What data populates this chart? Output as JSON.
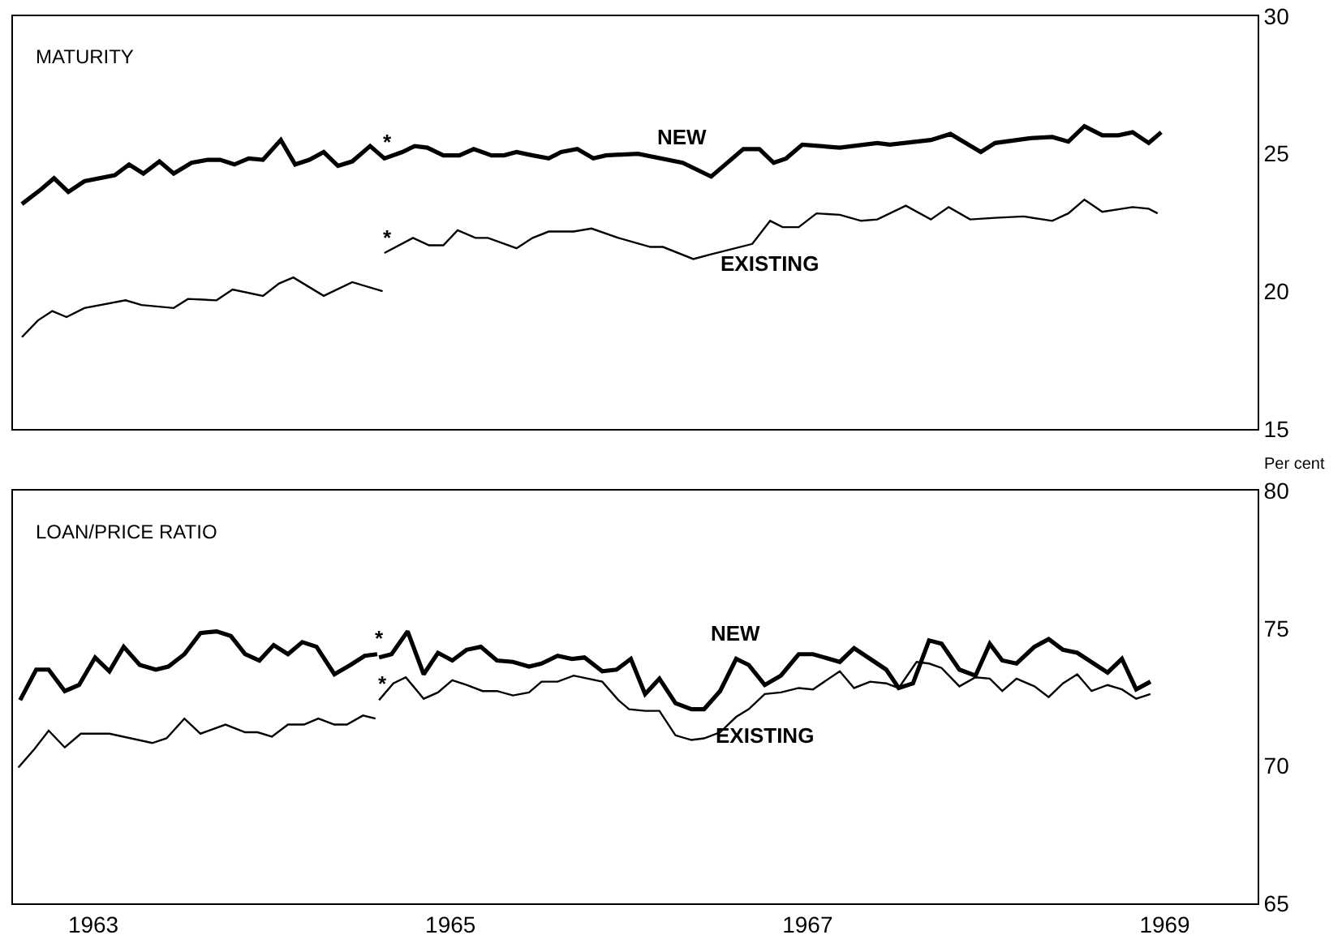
{
  "chart_data": [
    {
      "type": "line",
      "title": "MATURITY",
      "xlim": [
        1962.55,
        1969.52
      ],
      "ylim": [
        15,
        30
      ],
      "yticks": [
        15,
        20,
        25,
        30
      ],
      "xticks": [
        1963,
        1965,
        1967,
        1969
      ],
      "tick_labels": "y",
      "marker": "none",
      "series": [
        {
          "name": "NEW",
          "color": "#000000",
          "line_style": "solid",
          "x": [
            1962.6,
            1962.71,
            1962.78,
            1962.86,
            1962.95,
            1963.12,
            1963.2,
            1963.28,
            1963.37,
            1963.45,
            1963.55,
            1963.64,
            1963.71,
            1963.79,
            1963.87,
            1963.95,
            1964.05,
            1964.13,
            1964.21,
            1964.29,
            1964.37,
            1964.45,
            1964.55,
            1964.63,
            1964.73,
            1964.8,
            1964.87,
            1964.96,
            1965.05,
            1965.13,
            1965.23,
            1965.3,
            1965.37,
            1965.46,
            1965.55,
            1965.62,
            1965.71,
            1965.8,
            1965.87,
            1966.05,
            1966.3,
            1966.46,
            1966.64,
            1966.73,
            1966.81,
            1966.88,
            1966.97,
            1967.18,
            1967.39,
            1967.46,
            1967.69,
            1967.8,
            1967.97,
            1968.05,
            1968.24,
            1968.37,
            1968.46,
            1968.55,
            1968.65,
            1968.74,
            1968.82,
            1968.91,
            1968.98
          ],
          "values": [
            23.17,
            23.72,
            24.11,
            23.61,
            24.0,
            24.22,
            24.61,
            24.28,
            24.72,
            24.28,
            24.67,
            24.78,
            24.78,
            24.61,
            24.83,
            24.78,
            25.5,
            24.61,
            24.78,
            25.06,
            24.56,
            24.72,
            25.28,
            24.83,
            25.06,
            25.28,
            25.22,
            24.94,
            24.94,
            25.17,
            24.94,
            24.94,
            25.06,
            24.94,
            24.83,
            25.06,
            25.17,
            24.83,
            24.94,
            25.0,
            24.67,
            24.17,
            25.17,
            25.17,
            24.67,
            24.83,
            25.33,
            25.22,
            25.39,
            25.33,
            25.5,
            25.72,
            25.06,
            25.39,
            25.56,
            25.61,
            25.44,
            26.0,
            25.67,
            25.67,
            25.78,
            25.39,
            25.78
          ]
        },
        {
          "name": "EXISTING",
          "color": "#000000",
          "line_style": "solid",
          "x": [
            1962.6,
            1962.69,
            1962.77,
            1962.85,
            1962.95,
            1963.18,
            1963.27,
            1963.45,
            1963.53,
            1963.69,
            1963.78,
            1963.95,
            1964.04,
            1964.12,
            1964.29,
            1964.45,
            1964.62,
            1964.625,
            1964.63,
            1964.79,
            1964.88,
            1964.96,
            1965.04,
            1965.14,
            1965.21,
            1965.37,
            1965.46,
            1965.55,
            1965.69,
            1965.79,
            1965.94,
            1966.12,
            1966.19,
            1966.36,
            1966.45,
            1966.69,
            1966.79,
            1966.86,
            1966.95,
            1967.05,
            1967.18,
            1967.3,
            1967.39,
            1967.55,
            1967.69,
            1967.79,
            1967.91,
            1968.05,
            1968.21,
            1968.37,
            1968.46,
            1968.55,
            1968.65,
            1968.82,
            1968.91,
            1968.96
          ],
          "values": [
            18.33,
            18.94,
            19.28,
            19.06,
            19.39,
            19.67,
            19.5,
            19.39,
            19.72,
            19.67,
            20.06,
            19.83,
            20.28,
            20.5,
            19.83,
            20.33,
            20.0,
            null,
            21.39,
            21.94,
            21.67,
            21.67,
            22.22,
            21.94,
            21.94,
            21.56,
            21.94,
            22.17,
            22.17,
            22.28,
            21.94,
            21.61,
            21.61,
            21.17,
            21.33,
            21.72,
            22.56,
            22.33,
            22.33,
            22.83,
            22.78,
            22.56,
            22.61,
            23.11,
            22.61,
            23.06,
            22.61,
            22.67,
            22.72,
            22.56,
            22.83,
            23.33,
            22.89,
            23.06,
            23.0,
            22.83
          ]
        }
      ],
      "annotations": [
        {
          "text": "*",
          "x": 1964.63,
          "y": 24.83
        },
        {
          "text": "*",
          "x": 1964.63,
          "y": 21.39
        }
      ]
    },
    {
      "type": "line",
      "title": "LOAN/PRICE RATIO",
      "ylabel": "Per cent",
      "xlim": [
        1962.55,
        1969.52
      ],
      "ylim": [
        65,
        80
      ],
      "yticks": [
        65,
        70,
        75,
        80
      ],
      "xticks": [
        1963,
        1965,
        1967,
        1969
      ],
      "marker": "none",
      "series": [
        {
          "name": "NEW",
          "color": "#000000",
          "line_style": "solid",
          "x": [
            1962.59,
            1962.68,
            1962.75,
            1962.84,
            1962.92,
            1963.01,
            1963.09,
            1963.17,
            1963.26,
            1963.35,
            1963.42,
            1963.51,
            1963.6,
            1963.69,
            1963.77,
            1963.85,
            1963.93,
            1964.01,
            1964.09,
            1964.17,
            1964.25,
            1964.35,
            1964.44,
            1964.52,
            1964.59,
            1964.595,
            1964.6,
            1964.67,
            1964.76,
            1964.85,
            1964.93,
            1965.01,
            1965.09,
            1965.17,
            1965.26,
            1965.35,
            1965.44,
            1965.51,
            1965.6,
            1965.68,
            1965.75,
            1965.85,
            1965.93,
            1966.01,
            1966.09,
            1966.17,
            1966.26,
            1966.35,
            1966.42,
            1966.51,
            1966.6,
            1966.67,
            1966.76,
            1966.85,
            1966.95,
            1967.03,
            1967.18,
            1967.26,
            1967.35,
            1967.44,
            1967.51,
            1967.59,
            1967.68,
            1967.75,
            1967.85,
            1967.94,
            1968.02,
            1968.09,
            1968.17,
            1968.27,
            1968.35,
            1968.43,
            1968.51,
            1968.68,
            1968.76,
            1968.84,
            1968.92
          ],
          "values": [
            72.39,
            73.5,
            73.5,
            72.72,
            72.94,
            73.94,
            73.44,
            74.33,
            73.67,
            73.5,
            73.61,
            74.06,
            74.83,
            74.89,
            74.72,
            74.06,
            73.83,
            74.39,
            74.06,
            74.5,
            74.33,
            73.33,
            73.67,
            74.0,
            74.06,
            null,
            73.94,
            74.06,
            74.89,
            73.33,
            74.11,
            73.83,
            74.22,
            74.33,
            73.83,
            73.78,
            73.61,
            73.72,
            74.0,
            73.89,
            73.94,
            73.44,
            73.5,
            73.89,
            72.61,
            73.17,
            72.28,
            72.06,
            72.06,
            72.72,
            73.89,
            73.67,
            72.94,
            73.28,
            74.06,
            74.06,
            73.78,
            74.28,
            73.89,
            73.5,
            72.83,
            73.0,
            74.56,
            74.44,
            73.5,
            73.28,
            74.44,
            73.83,
            73.72,
            74.33,
            74.61,
            74.22,
            74.11,
            73.39,
            73.89,
            72.78,
            73.06
          ]
        },
        {
          "name": "EXISTING",
          "color": "#000000",
          "line_style": "solid",
          "x": [
            1962.58,
            1962.67,
            1962.75,
            1962.84,
            1962.93,
            1963.09,
            1963.33,
            1963.41,
            1963.51,
            1963.6,
            1963.74,
            1963.85,
            1963.92,
            1964.0,
            1964.09,
            1964.18,
            1964.26,
            1964.35,
            1964.42,
            1964.51,
            1964.58,
            1964.59,
            1964.6,
            1964.68,
            1964.75,
            1964.85,
            1964.93,
            1965.01,
            1965.09,
            1965.18,
            1965.26,
            1965.35,
            1965.44,
            1965.51,
            1965.6,
            1965.69,
            1965.85,
            1965.94,
            1966.0,
            1966.09,
            1966.17,
            1966.26,
            1966.35,
            1966.42,
            1966.51,
            1966.6,
            1966.67,
            1966.76,
            1966.85,
            1966.95,
            1967.03,
            1967.18,
            1967.26,
            1967.35,
            1967.44,
            1967.51,
            1967.61,
            1967.68,
            1967.75,
            1967.85,
            1967.94,
            1968.02,
            1968.09,
            1968.17,
            1968.27,
            1968.35,
            1968.43,
            1968.51,
            1968.59,
            1968.68,
            1968.76,
            1968.84,
            1968.92
          ],
          "values": [
            69.94,
            70.61,
            71.28,
            70.67,
            71.17,
            71.17,
            70.83,
            71.0,
            71.72,
            71.17,
            71.5,
            71.22,
            71.22,
            71.06,
            71.5,
            71.5,
            71.72,
            71.5,
            71.5,
            71.83,
            71.72,
            null,
            72.39,
            73.0,
            73.22,
            72.44,
            72.67,
            73.11,
            72.94,
            72.72,
            72.72,
            72.56,
            72.67,
            73.06,
            73.06,
            73.28,
            73.06,
            72.39,
            72.06,
            72.0,
            72.0,
            71.11,
            70.94,
            71.0,
            71.22,
            71.78,
            72.06,
            72.61,
            72.67,
            72.83,
            72.78,
            73.44,
            72.83,
            73.06,
            73.0,
            72.83,
            73.78,
            73.72,
            73.56,
            72.89,
            73.22,
            73.17,
            72.72,
            73.17,
            72.89,
            72.5,
            73.0,
            73.33,
            72.72,
            72.94,
            72.78,
            72.44,
            72.61
          ]
        }
      ],
      "annotations": [
        {
          "text": "*",
          "x": 1964.59,
          "y": 74.06
        },
        {
          "text": "*",
          "x": 1964.6,
          "y": 72.39
        }
      ]
    }
  ]
}
